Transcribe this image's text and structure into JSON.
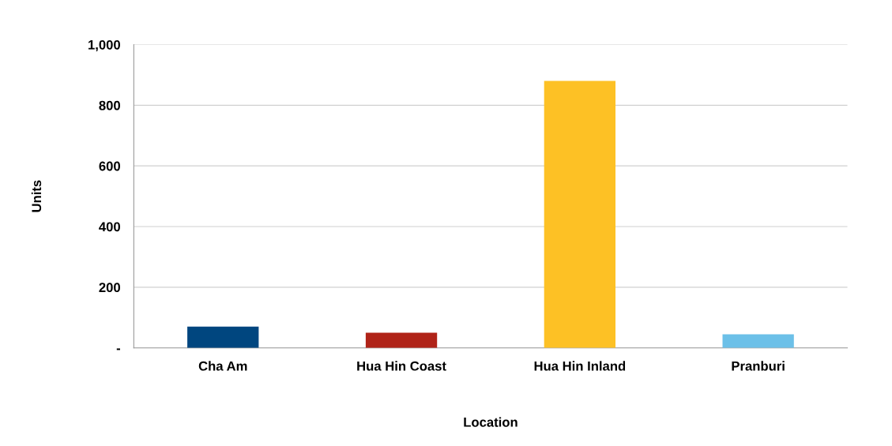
{
  "chart_data": {
    "type": "bar",
    "xlabel": "Location",
    "ylabel": "Units",
    "categories": [
      "Cha Am",
      "Hua Hin Coast",
      "Hua Hin Inland",
      "Pranburi"
    ],
    "values": [
      70,
      50,
      880,
      45
    ],
    "colors": [
      "#00467f",
      "#b02318",
      "#fdc125",
      "#6cc0e8"
    ],
    "ylim": [
      0,
      1000
    ],
    "yticks": [
      {
        "value": 0,
        "label": "-"
      },
      200,
      400,
      600,
      800,
      {
        "value": 1000,
        "label": "1,000"
      }
    ],
    "grid": "y"
  }
}
